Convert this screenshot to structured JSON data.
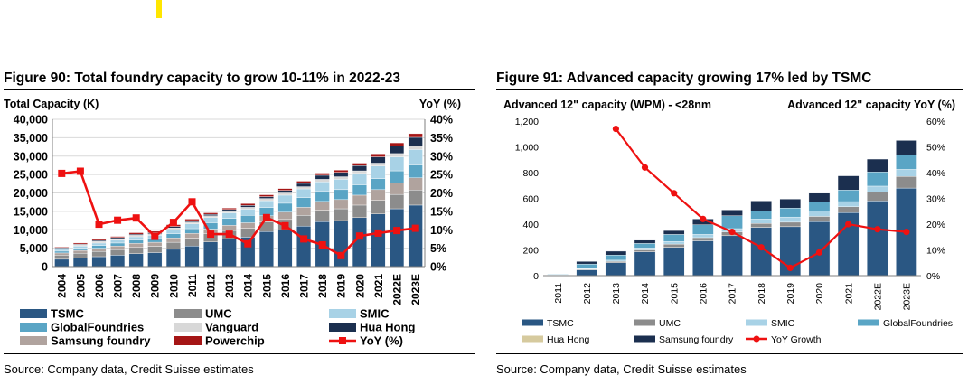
{
  "left_figure": {
    "title": "Figure 90: Total foundry capacity to grow 10-11% in 2022-23",
    "source": "Source: Company data, Credit Suisse estimates"
  },
  "right_figure": {
    "title": "Figure 91: Advanced capacity growing 17% led by TSMC",
    "source": "Source: Company data, Credit Suisse estimates"
  },
  "colors": {
    "tsmc": "#2a5783",
    "umc": "#8c8c8c",
    "smic": "#a8d2e6",
    "globalfoundries": "#5aa5c5",
    "vanguard": "#d8d8d8",
    "hua_hong": "#1b2f4f",
    "samsung": "#b0a39e",
    "powerchip": "#a51515",
    "yoy": "#ee1111",
    "hua_hong_right": "#d6ca9e"
  },
  "chart_data": [
    {
      "type": "bar",
      "stacked": true,
      "title": "Figure 90: Total foundry capacity to grow 10-11% in 2022-23",
      "ylabel": "Total Capacity (K)",
      "y2label": "YoY (%)",
      "ylim": [
        0,
        40000
      ],
      "y2lim": [
        0,
        40
      ],
      "yticks": [
        "0",
        "5,000",
        "10,000",
        "15,000",
        "20,000",
        "25,000",
        "30,000",
        "35,000",
        "40,000"
      ],
      "y2ticks": [
        "0%",
        "5%",
        "10%",
        "15%",
        "20%",
        "25%",
        "30%",
        "35%",
        "40%"
      ],
      "grid": true,
      "legend": "bottom",
      "categories": [
        "2004",
        "2005",
        "2006",
        "2007",
        "2008",
        "2009",
        "2010",
        "2011",
        "2012",
        "2013",
        "2014",
        "2015",
        "2016",
        "2017",
        "2018",
        "2019",
        "2020",
        "2021",
        "2022E",
        "2023E"
      ],
      "series": [
        {
          "name": "TSMC",
          "color_key": "tsmc",
          "values": [
            2000,
            2300,
            2700,
            3100,
            3500,
            3800,
            4700,
            5600,
            6700,
            7500,
            8000,
            9500,
            10000,
            11000,
            12200,
            12500,
            13300,
            14300,
            15700,
            16700
          ]
        },
        {
          "name": "UMC",
          "color_key": "umc",
          "values": [
            1100,
            1300,
            1400,
            1500,
            1700,
            1700,
            1900,
            2100,
            2200,
            2300,
            2400,
            2600,
            2800,
            2900,
            3100,
            3200,
            3400,
            3700,
            3900,
            4100
          ]
        },
        {
          "name": "Samsung foundry",
          "color_key": "samsung",
          "values": [
            600,
            800,
            900,
            1000,
            1100,
            1100,
            1200,
            1300,
            1300,
            1400,
            1500,
            1700,
            2000,
            2200,
            2400,
            2500,
            2700,
            2900,
            3100,
            3300
          ]
        },
        {
          "name": "GlobalFoundries",
          "color_key": "globalfoundries",
          "values": [
            500,
            600,
            700,
            800,
            900,
            1000,
            1100,
            1300,
            1700,
            1900,
            2000,
            2200,
            2400,
            2600,
            2700,
            2700,
            2800,
            3000,
            3300,
            3500
          ]
        },
        {
          "name": "SMIC",
          "color_key": "smic",
          "values": [
            500,
            600,
            700,
            800,
            900,
            900,
            1100,
            1300,
            1400,
            1500,
            1700,
            1900,
            2200,
            2400,
            2600,
            2800,
            3100,
            3400,
            3800,
            4200
          ]
        },
        {
          "name": "Vanguard",
          "color_key": "vanguard",
          "values": [
            300,
            300,
            400,
            400,
            400,
            400,
            500,
            500,
            500,
            500,
            500,
            600,
            600,
            600,
            700,
            700,
            700,
            800,
            900,
            1000
          ]
        },
        {
          "name": "Hua Hong",
          "color_key": "hua_hong",
          "values": [
            200,
            200,
            300,
            300,
            300,
            300,
            400,
            400,
            400,
            400,
            500,
            500,
            700,
            900,
            1100,
            1200,
            1400,
            1700,
            2000,
            2300
          ]
        },
        {
          "name": "Powerchip",
          "color_key": "powerchip",
          "values": [
            200,
            300,
            300,
            300,
            400,
            400,
            500,
            400,
            400,
            400,
            500,
            500,
            500,
            600,
            600,
            600,
            700,
            800,
            900,
            1000
          ]
        }
      ],
      "line_series": {
        "name": "YoY (%)",
        "color_key": "yoy",
        "axis": "right",
        "values": [
          25.3,
          25.9,
          11.5,
          12.6,
          13.2,
          8.2,
          12.0,
          17.6,
          8.8,
          8.8,
          6.2,
          13.3,
          11.1,
          7.5,
          5.9,
          3.0,
          8.3,
          9.1,
          9.8,
          10.4
        ]
      }
    },
    {
      "type": "bar",
      "stacked": true,
      "title": "Figure 91: Advanced capacity growing 17% led by TSMC",
      "ylabel": "Advanced 12\" capacity (WPM) - <28nm",
      "y2label": "Advanced 12\" capacity YoY (%)",
      "ylim": [
        0,
        1200
      ],
      "y2lim": [
        0,
        60
      ],
      "yticks": [
        "0",
        "200",
        "400",
        "600",
        "800",
        "1,000",
        "1,200"
      ],
      "y2ticks": [
        "0%",
        "10%",
        "20%",
        "30%",
        "40%",
        "50%",
        "60%"
      ],
      "grid": false,
      "legend": "bottom",
      "categories": [
        "2011",
        "2012",
        "2013",
        "2014",
        "2015",
        "2016",
        "2017",
        "2018",
        "2019",
        "2020",
        "2021",
        "2022E",
        "2023E"
      ],
      "series": [
        {
          "name": "TSMC",
          "color_key": "tsmc",
          "values": [
            5,
            45,
            100,
            185,
            220,
            270,
            310,
            375,
            380,
            420,
            490,
            580,
            680
          ]
        },
        {
          "name": "UMC",
          "color_key": "umc",
          "values": [
            0,
            5,
            10,
            15,
            25,
            25,
            30,
            30,
            35,
            40,
            45,
            70,
            90
          ]
        },
        {
          "name": "SMIC",
          "color_key": "smic",
          "values": [
            0,
            5,
            10,
            15,
            20,
            25,
            25,
            35,
            40,
            40,
            40,
            45,
            55
          ]
        },
        {
          "name": "GlobalFoundries",
          "color_key": "globalfoundries",
          "values": [
            5,
            35,
            40,
            35,
            55,
            75,
            100,
            60,
            70,
            70,
            90,
            110,
            110
          ]
        },
        {
          "name": "Hua Hong",
          "color_key": "hua_hong_right",
          "values": [
            0,
            0,
            0,
            0,
            0,
            0,
            0,
            0,
            0,
            0,
            0,
            0,
            0
          ]
        },
        {
          "name": "Samsung foundry",
          "color_key": "hua_hong",
          "values": [
            0,
            20,
            30,
            25,
            30,
            45,
            45,
            80,
            70,
            70,
            110,
            100,
            115
          ]
        }
      ],
      "line_series": {
        "name": "YoY Growth",
        "color_key": "yoy",
        "axis": "right",
        "values": [
          null,
          null,
          57,
          42,
          32,
          22,
          17,
          11,
          3,
          9,
          20,
          18,
          17
        ]
      }
    }
  ],
  "legend_left": [
    "TSMC",
    "UMC",
    "SMIC",
    "GlobalFoundries",
    "Vanguard",
    "Hua Hong",
    "Samsung foundry",
    "Powerchip",
    "YoY (%)"
  ],
  "legend_right": [
    "TSMC",
    "UMC",
    "SMIC",
    "GlobalFoundries",
    "Hua Hong",
    "Samsung foundry",
    "YoY Growth"
  ]
}
